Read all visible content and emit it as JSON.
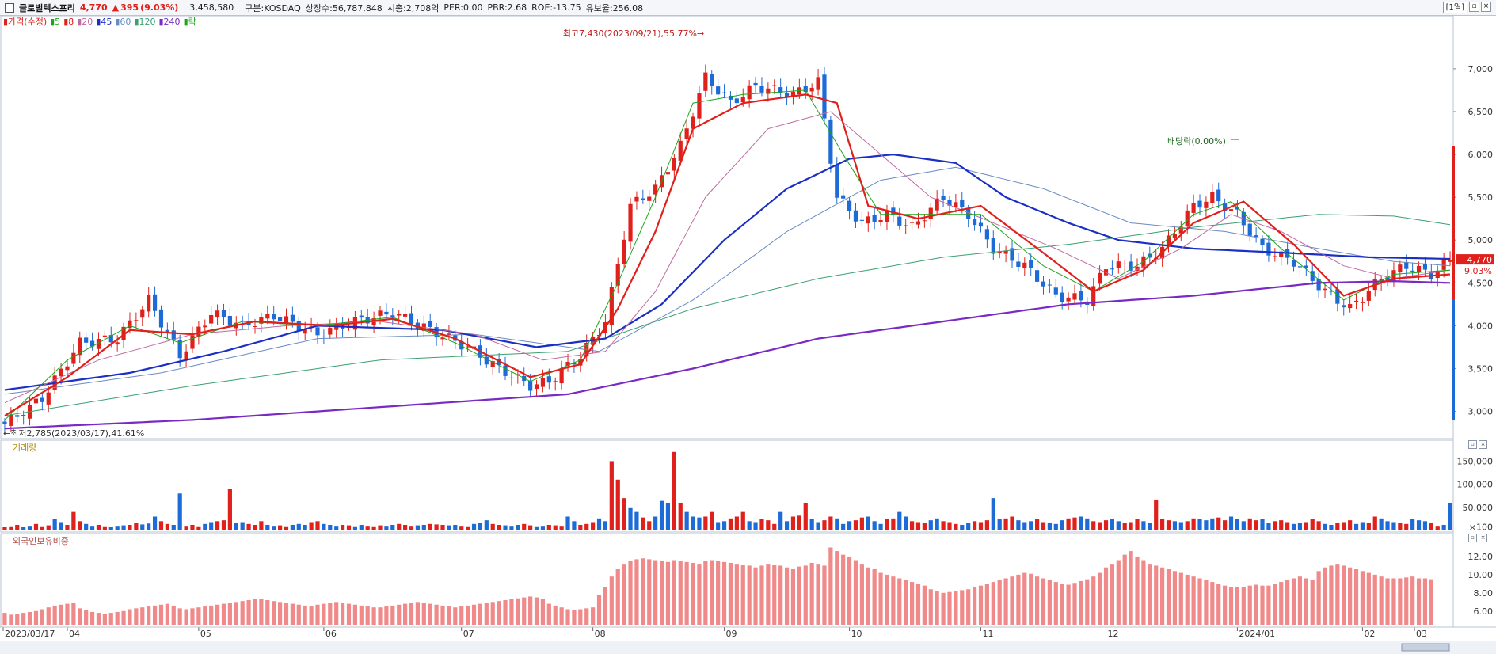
{
  "header": {
    "name": "글로벌텍스프리",
    "price": "4,770",
    "change_arrow": "▲",
    "change": "395",
    "change_pct": "(9.03%)",
    "volume": "3,458,580",
    "market": "구분:KOSDAQ",
    "listed": "상장수:56,787,848",
    "mcap": "시총:2,708억",
    "per": "PER:0.00",
    "pbr": "PBR:2.68",
    "roe": "ROE:-13.75",
    "float": "유보율:256.08",
    "period_button": "[1일]"
  },
  "legend": [
    {
      "label": "가격(수정)",
      "color": "#e0201b"
    },
    {
      "label": "5",
      "color": "#1aa61a"
    },
    {
      "label": "8",
      "color": "#e0201b"
    },
    {
      "label": "20",
      "color": "#c06aa0"
    },
    {
      "label": "45",
      "color": "#1a2fc4"
    },
    {
      "label": "60",
      "color": "#6a8ac4"
    },
    {
      "label": "120",
      "color": "#3aa070"
    },
    {
      "label": "240",
      "color": "#7a2ac4"
    },
    {
      "label": "락",
      "color": "#1aa61a"
    }
  ],
  "annotations": {
    "high": "최고7,430(2023/09/21),55.77%→",
    "low": "←최저2,785(2023/03/17),41.61%",
    "dividend": "배당락(0.00%)",
    "last_price": "4,770",
    "last_pct": "9.03%"
  },
  "panes": {
    "volume_title": "거래량",
    "foreign_title": "외국인보유비중"
  },
  "colors": {
    "up": "#e0201b",
    "down": "#1d6bd6",
    "foreign_bar": "#f08a8a",
    "volume_axis_up": "#e0201b",
    "volume_axis_down": "#1d6bd6"
  },
  "chart_data": {
    "type": "candlestick",
    "price_axis_ticks": [
      "7,000",
      "6,500",
      "6,000",
      "5,500",
      "5,000",
      "4,500",
      "4,000",
      "3,500",
      "3,000"
    ],
    "volume_axis_ticks": [
      "150,000",
      "100,000",
      "50,000",
      "×100"
    ],
    "foreign_axis_ticks": [
      "12.00",
      "10.00",
      "8.00",
      "6.00"
    ],
    "x_tick_labels": [
      "2023/03/17",
      "04",
      "05",
      "06",
      "07",
      "08",
      "09",
      "10",
      "11",
      "12",
      "2024/01",
      "02",
      "03"
    ],
    "ylim": [
      2700,
      7600
    ],
    "price_close_path": [
      [
        0,
        2850
      ],
      [
        6,
        3150
      ],
      [
        12,
        3800
      ],
      [
        18,
        3850
      ],
      [
        23,
        4300
      ],
      [
        28,
        3650
      ],
      [
        33,
        4150
      ],
      [
        38,
        4000
      ],
      [
        43,
        4120
      ],
      [
        50,
        3900
      ],
      [
        56,
        4050
      ],
      [
        62,
        4150
      ],
      [
        68,
        3950
      ],
      [
        74,
        3750
      ],
      [
        79,
        3500
      ],
      [
        84,
        3300
      ],
      [
        87,
        3350
      ],
      [
        92,
        3650
      ],
      [
        96,
        4050
      ],
      [
        100,
        5400
      ],
      [
        104,
        5600
      ],
      [
        108,
        6100
      ],
      [
        112,
        6900
      ],
      [
        116,
        6600
      ],
      [
        120,
        6800
      ],
      [
        126,
        6700
      ],
      [
        130,
        6850
      ],
      [
        133,
        5500
      ],
      [
        137,
        5200
      ],
      [
        141,
        5300
      ],
      [
        145,
        5150
      ],
      [
        150,
        5500
      ],
      [
        154,
        5300
      ],
      [
        158,
        4900
      ],
      [
        163,
        4700
      ],
      [
        168,
        4350
      ],
      [
        173,
        4300
      ],
      [
        176,
        4700
      ],
      [
        181,
        4700
      ],
      [
        185,
        4900
      ],
      [
        190,
        5400
      ],
      [
        193,
        5500
      ],
      [
        197,
        5300
      ],
      [
        201,
        4900
      ],
      [
        206,
        4750
      ],
      [
        211,
        4400
      ],
      [
        215,
        4200
      ],
      [
        220,
        4550
      ],
      [
        224,
        4700
      ],
      [
        228,
        4600
      ],
      [
        231,
        4770
      ]
    ],
    "ma5_path": [
      [
        0,
        2900
      ],
      [
        10,
        3600
      ],
      [
        20,
        4000
      ],
      [
        28,
        3800
      ],
      [
        38,
        4050
      ],
      [
        50,
        4000
      ],
      [
        62,
        4100
      ],
      [
        72,
        3800
      ],
      [
        84,
        3350
      ],
      [
        92,
        3600
      ],
      [
        98,
        4500
      ],
      [
        104,
        5500
      ],
      [
        110,
        6600
      ],
      [
        118,
        6700
      ],
      [
        128,
        6750
      ],
      [
        134,
        6000
      ],
      [
        140,
        5300
      ],
      [
        148,
        5300
      ],
      [
        156,
        5300
      ],
      [
        166,
        4700
      ],
      [
        174,
        4400
      ],
      [
        182,
        4750
      ],
      [
        190,
        5300
      ],
      [
        196,
        5450
      ],
      [
        204,
        4900
      ],
      [
        214,
        4300
      ],
      [
        222,
        4600
      ],
      [
        231,
        4650
      ]
    ],
    "ma8_path": [
      [
        0,
        2950
      ],
      [
        10,
        3400
      ],
      [
        20,
        3950
      ],
      [
        30,
        3900
      ],
      [
        40,
        4050
      ],
      [
        52,
        4000
      ],
      [
        62,
        4080
      ],
      [
        72,
        3850
      ],
      [
        84,
        3400
      ],
      [
        92,
        3550
      ],
      [
        98,
        4200
      ],
      [
        104,
        5100
      ],
      [
        110,
        6300
      ],
      [
        118,
        6600
      ],
      [
        128,
        6700
      ],
      [
        133,
        6600
      ],
      [
        138,
        5400
      ],
      [
        146,
        5250
      ],
      [
        156,
        5400
      ],
      [
        166,
        4850
      ],
      [
        174,
        4400
      ],
      [
        182,
        4650
      ],
      [
        190,
        5200
      ],
      [
        198,
        5450
      ],
      [
        206,
        4950
      ],
      [
        214,
        4350
      ],
      [
        222,
        4550
      ],
      [
        231,
        4600
      ]
    ],
    "ma20_path": [
      [
        0,
        3100
      ],
      [
        15,
        3600
      ],
      [
        30,
        3900
      ],
      [
        45,
        4000
      ],
      [
        60,
        4050
      ],
      [
        75,
        3900
      ],
      [
        86,
        3600
      ],
      [
        96,
        3700
      ],
      [
        104,
        4400
      ],
      [
        112,
        5500
      ],
      [
        122,
        6300
      ],
      [
        132,
        6500
      ],
      [
        140,
        6000
      ],
      [
        148,
        5500
      ],
      [
        158,
        5200
      ],
      [
        168,
        4900
      ],
      [
        178,
        4550
      ],
      [
        188,
        4900
      ],
      [
        196,
        5300
      ],
      [
        204,
        5100
      ],
      [
        214,
        4700
      ],
      [
        222,
        4550
      ],
      [
        231,
        4650
      ]
    ],
    "ma45_path": [
      [
        0,
        3250
      ],
      [
        20,
        3450
      ],
      [
        35,
        3700
      ],
      [
        50,
        4000
      ],
      [
        70,
        3950
      ],
      [
        85,
        3750
      ],
      [
        96,
        3850
      ],
      [
        105,
        4250
      ],
      [
        115,
        5000
      ],
      [
        125,
        5600
      ],
      [
        135,
        5950
      ],
      [
        142,
        6000
      ],
      [
        152,
        5900
      ],
      [
        160,
        5500
      ],
      [
        170,
        5200
      ],
      [
        178,
        5000
      ],
      [
        190,
        4900
      ],
      [
        205,
        4850
      ],
      [
        218,
        4800
      ],
      [
        231,
        4780
      ]
    ],
    "ma60_path": [
      [
        0,
        3200
      ],
      [
        25,
        3450
      ],
      [
        50,
        3850
      ],
      [
        75,
        3900
      ],
      [
        95,
        3700
      ],
      [
        110,
        4300
      ],
      [
        125,
        5100
      ],
      [
        140,
        5700
      ],
      [
        152,
        5850
      ],
      [
        166,
        5600
      ],
      [
        180,
        5200
      ],
      [
        195,
        5100
      ],
      [
        210,
        4900
      ],
      [
        222,
        4750
      ],
      [
        231,
        4700
      ]
    ],
    "ma120_path": [
      [
        0,
        2950
      ],
      [
        30,
        3300
      ],
      [
        60,
        3600
      ],
      [
        90,
        3700
      ],
      [
        110,
        4200
      ],
      [
        130,
        4550
      ],
      [
        150,
        4800
      ],
      [
        170,
        4950
      ],
      [
        190,
        5150
      ],
      [
        210,
        5300
      ],
      [
        222,
        5280
      ],
      [
        231,
        5180
      ]
    ],
    "ma240_path": [
      [
        0,
        2800
      ],
      [
        30,
        2900
      ],
      [
        60,
        3050
      ],
      [
        90,
        3200
      ],
      [
        110,
        3500
      ],
      [
        130,
        3850
      ],
      [
        150,
        4050
      ],
      [
        170,
        4250
      ],
      [
        190,
        4350
      ],
      [
        210,
        4500
      ],
      [
        222,
        4520
      ],
      [
        231,
        4500
      ]
    ],
    "volume_x100": [
      8,
      9,
      12,
      7,
      10,
      14,
      9,
      11,
      25,
      18,
      12,
      40,
      20,
      14,
      10,
      12,
      9,
      8,
      10,
      11,
      12,
      16,
      13,
      15,
      30,
      20,
      14,
      12,
      80,
      10,
      12,
      9,
      14,
      18,
      20,
      22,
      90,
      16,
      18,
      14,
      12,
      20,
      12,
      10,
      11,
      9,
      12,
      14,
      12,
      18,
      20,
      14,
      12,
      10,
      12,
      11,
      9,
      12,
      10,
      9,
      11,
      10,
      12,
      14,
      12,
      10,
      11,
      12,
      14,
      13,
      12,
      11,
      12,
      10,
      9,
      14,
      16,
      22,
      14,
      12,
      11,
      10,
      12,
      14,
      11,
      9,
      10,
      12,
      11,
      10,
      30,
      20,
      12,
      14,
      18,
      26,
      20,
      150,
      110,
      70,
      50,
      40,
      28,
      20,
      30,
      64,
      60,
      170,
      60,
      40,
      30,
      28,
      30,
      40,
      18,
      20,
      26,
      30,
      40,
      20,
      18,
      24,
      22,
      14,
      40,
      20,
      30,
      32,
      60,
      24,
      18,
      22,
      30,
      26,
      14,
      20,
      22,
      28,
      30,
      20,
      14,
      24,
      26,
      40,
      30,
      20,
      18,
      16,
      22,
      26,
      20,
      18,
      14,
      12,
      16,
      20,
      18,
      22,
      70,
      24,
      26,
      30,
      22,
      18,
      20,
      24,
      18,
      16,
      14,
      22,
      26,
      28,
      30,
      26,
      20,
      18,
      22,
      24,
      20,
      16,
      18,
      24,
      20,
      16,
      66,
      24,
      22,
      20,
      18,
      20,
      26,
      24,
      22,
      26,
      28,
      22,
      30,
      24,
      20,
      26,
      22,
      24,
      16,
      20,
      22,
      18,
      14,
      16,
      18,
      24,
      20,
      14,
      12,
      16,
      18,
      22,
      14,
      18,
      16,
      30,
      26,
      20,
      18,
      16,
      14,
      24,
      22,
      20,
      16,
      10,
      12,
      60
    ],
    "foreign_ratio_pct": [
      5.8,
      5.6,
      5.7,
      5.8,
      5.9,
      6.0,
      6.2,
      6.4,
      6.6,
      6.7,
      6.8,
      6.9,
      6.3,
      6.1,
      5.9,
      5.8,
      5.7,
      5.8,
      5.9,
      6.0,
      6.2,
      6.3,
      6.4,
      6.5,
      6.6,
      6.7,
      6.8,
      6.6,
      6.3,
      6.2,
      6.3,
      6.4,
      6.5,
      6.6,
      6.7,
      6.8,
      6.9,
      7.0,
      7.1,
      7.2,
      7.3,
      7.3,
      7.2,
      7.1,
      7.0,
      6.9,
      6.8,
      6.7,
      6.6,
      6.5,
      6.7,
      6.8,
      6.9,
      7.0,
      6.9,
      6.8,
      6.7,
      6.6,
      6.5,
      6.4,
      6.4,
      6.5,
      6.6,
      6.7,
      6.8,
      6.9,
      7.0,
      6.9,
      6.8,
      6.7,
      6.6,
      6.5,
      6.4,
      6.5,
      6.6,
      6.7,
      6.8,
      6.9,
      7.0,
      7.1,
      7.2,
      7.3,
      7.4,
      7.5,
      7.6,
      7.5,
      7.3,
      6.8,
      6.6,
      6.4,
      6.2,
      6.1,
      6.2,
      6.3,
      6.4,
      7.8,
      8.6,
      9.8,
      10.6,
      11.2,
      11.5,
      11.7,
      11.8,
      11.7,
      11.6,
      11.5,
      11.4,
      11.6,
      11.5,
      11.4,
      11.3,
      11.2,
      11.5,
      11.6,
      11.5,
      11.4,
      11.3,
      11.2,
      11.1,
      11.0,
      10.8,
      11.0,
      11.2,
      11.1,
      11.0,
      10.8,
      10.6,
      10.9,
      11.0,
      11.3,
      11.2,
      11.0,
      13.0,
      12.6,
      12.2,
      12.0,
      11.6,
      11.2,
      10.8,
      10.6,
      10.2,
      10.0,
      9.8,
      9.6,
      9.4,
      9.2,
      9.0,
      8.8,
      8.4,
      8.2,
      8.0,
      8.1,
      8.2,
      8.3,
      8.4,
      8.6,
      8.8,
      9.0,
      9.2,
      9.4,
      9.6,
      9.8,
      10.0,
      10.2,
      10.1,
      9.8,
      9.6,
      9.4,
      9.2,
      9.0,
      8.9,
      9.1,
      9.3,
      9.5,
      9.8,
      10.2,
      10.8,
      11.2,
      11.6,
      12.2,
      12.6,
      12.0,
      11.6,
      11.2,
      11.0,
      10.8,
      10.6,
      10.4,
      10.2,
      10.0,
      9.8,
      9.6,
      9.4,
      9.2,
      9.0,
      8.8,
      8.6,
      8.6,
      8.6,
      8.8,
      8.9,
      8.8,
      8.8,
      9.0,
      9.2,
      9.4,
      9.6,
      9.8,
      9.6,
      9.4,
      10.4,
      10.8,
      11.0,
      11.2,
      11.0,
      10.8,
      10.6,
      10.4,
      10.2,
      10.0,
      9.8,
      9.6,
      9.6,
      9.6,
      9.7,
      9.8,
      9.6,
      9.6,
      9.5
    ]
  }
}
